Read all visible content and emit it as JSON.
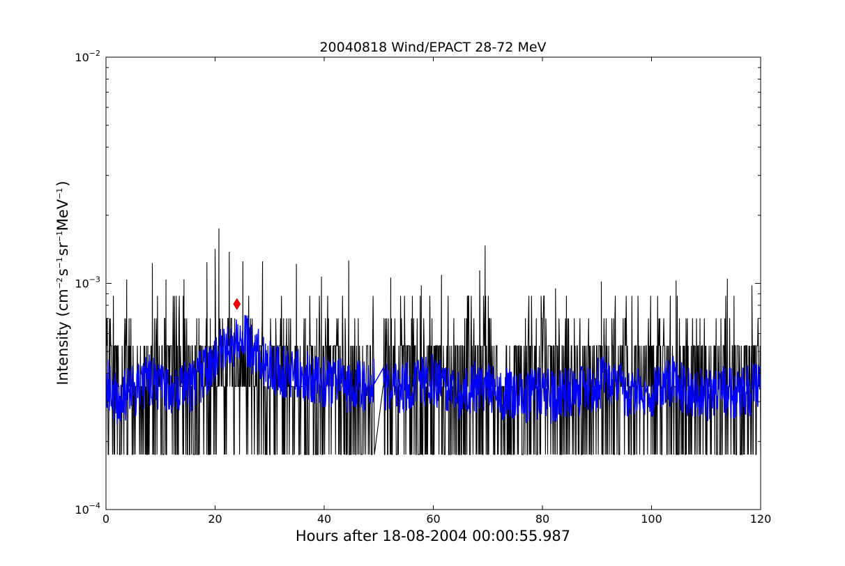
{
  "chart_data": {
    "type": "line",
    "title": "20040818 Wind/EPACT 28-72 MeV",
    "xlabel": "Hours after 18-08-2004 00:00:55.987",
    "ylabel": {
      "prefix": "Intensity (cm",
      "exp1": "−2",
      "part2": "s",
      "exp2": "−1",
      "part3": "sr",
      "exp3": "−1",
      "part4": "MeV",
      "exp4": "−1",
      "suffix": ")"
    },
    "xlim": [
      0,
      120
    ],
    "ylim": [
      0.0001,
      0.01
    ],
    "yscale": "log",
    "grid": false,
    "x_ticks": [
      0,
      20,
      40,
      60,
      80,
      100,
      120
    ],
    "x_tick_labels": [
      "0",
      "20",
      "40",
      "60",
      "80",
      "100",
      "120"
    ],
    "y_ticks": [
      {
        "value": 0.01,
        "base": "10",
        "exp": "−2"
      },
      {
        "value": 0.001,
        "base": "10",
        "exp": "−3"
      },
      {
        "value": 0.0001,
        "base": "10",
        "exp": "−4"
      }
    ],
    "series": [
      {
        "role": "raw",
        "color": "#000000",
        "x_range": [
          0,
          120
        ],
        "data_gap": [
          49.2,
          50.8
        ],
        "levels": [
          0.000175,
          0.00035,
          0.00053,
          0.0007,
          0.00088
        ],
        "peaks": [
          {
            "x": 3.8,
            "y": 0.00104
          },
          {
            "x": 8.5,
            "y": 0.00123
          },
          {
            "x": 11.0,
            "y": 0.00104
          },
          {
            "x": 14.3,
            "y": 0.00104
          },
          {
            "x": 18.5,
            "y": 0.00124
          },
          {
            "x": 20.0,
            "y": 0.00142
          },
          {
            "x": 20.7,
            "y": 0.00175
          },
          {
            "x": 22.6,
            "y": 0.00138
          },
          {
            "x": 25.1,
            "y": 0.00125
          },
          {
            "x": 28.7,
            "y": 0.00125
          },
          {
            "x": 34.9,
            "y": 0.00122
          },
          {
            "x": 39.5,
            "y": 0.00107
          },
          {
            "x": 44.5,
            "y": 0.00126
          },
          {
            "x": 52.2,
            "y": 0.00106
          },
          {
            "x": 57.8,
            "y": 0.00098
          },
          {
            "x": 61.5,
            "y": 0.00109
          },
          {
            "x": 68.5,
            "y": 0.00114
          },
          {
            "x": 69.5,
            "y": 0.00147
          },
          {
            "x": 82.4,
            "y": 0.00095
          },
          {
            "x": 90.8,
            "y": 0.00102
          },
          {
            "x": 104.5,
            "y": 0.00103
          },
          {
            "x": 113.9,
            "y": 0.00105
          },
          {
            "x": 118.4,
            "y": 0.00098
          }
        ]
      },
      {
        "role": "smoothed",
        "color": "#0000ff",
        "points": [
          [
            0,
            0.00036
          ],
          [
            2,
            0.00031
          ],
          [
            4,
            0.00033
          ],
          [
            6,
            0.00034
          ],
          [
            8,
            0.00037
          ],
          [
            10,
            0.00034
          ],
          [
            12,
            0.00033
          ],
          [
            14,
            0.00036
          ],
          [
            16,
            0.00035
          ],
          [
            18,
            0.00041
          ],
          [
            20,
            0.00046
          ],
          [
            22,
            0.00052
          ],
          [
            24,
            0.00058
          ],
          [
            25,
            0.00063
          ],
          [
            26,
            0.00055
          ],
          [
            28,
            0.00048
          ],
          [
            30,
            0.00043
          ],
          [
            32,
            0.00041
          ],
          [
            34,
            0.0004
          ],
          [
            36,
            0.00039
          ],
          [
            38,
            0.00038
          ],
          [
            40,
            0.00037
          ],
          [
            42,
            0.00036
          ],
          [
            44,
            0.00035
          ],
          [
            46,
            0.00035
          ],
          [
            48,
            0.00036
          ],
          [
            49.2,
            0.00037
          ],
          [
            50.8,
            0.00037
          ],
          [
            52,
            0.00035
          ],
          [
            54,
            0.00034
          ],
          [
            56,
            0.00035
          ],
          [
            58,
            0.00036
          ],
          [
            60,
            0.00038
          ],
          [
            62,
            0.00034
          ],
          [
            64,
            0.00031
          ],
          [
            66,
            0.00033
          ],
          [
            68,
            0.00035
          ],
          [
            70,
            0.00034
          ],
          [
            72,
            0.00033
          ],
          [
            74,
            0.00032
          ],
          [
            76,
            0.00031
          ],
          [
            78,
            0.00032
          ],
          [
            80,
            0.00033
          ],
          [
            82,
            0.00031
          ],
          [
            84,
            0.00032
          ],
          [
            86,
            0.00033
          ],
          [
            88,
            0.00034
          ],
          [
            90,
            0.00036
          ],
          [
            92,
            0.00038
          ],
          [
            94,
            0.00035
          ],
          [
            96,
            0.00033
          ],
          [
            98,
            0.00032
          ],
          [
            100,
            0.00033
          ],
          [
            102,
            0.00035
          ],
          [
            104,
            0.00037
          ],
          [
            106,
            0.00034
          ],
          [
            108,
            0.00033
          ],
          [
            110,
            0.00032
          ],
          [
            112,
            0.00034
          ],
          [
            114,
            0.00033
          ],
          [
            116,
            0.00032
          ],
          [
            118,
            0.00034
          ],
          [
            120,
            0.00035
          ]
        ]
      }
    ],
    "marker": {
      "shape": "diamond",
      "color": "#ff0000",
      "x": 24.0,
      "y": 0.00081
    }
  }
}
